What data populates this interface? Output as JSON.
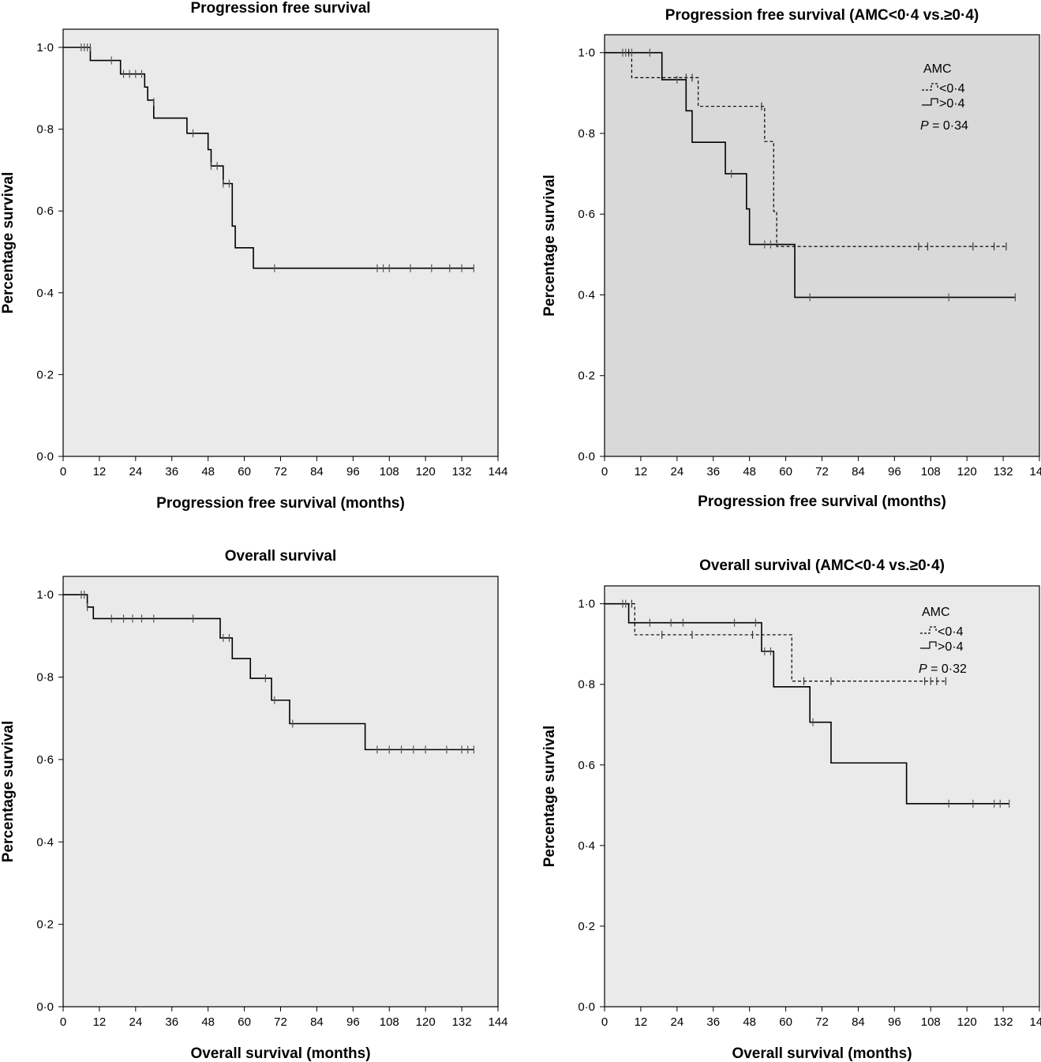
{
  "chart_data": [
    {
      "id": "pfs",
      "type": "line",
      "subtype": "kaplan-meier",
      "title": "Progression free survival",
      "xlabel": "Progression free survival (months)",
      "ylabel": "Percentage survival",
      "xlim": [
        0,
        144
      ],
      "ylim": [
        0,
        1.0
      ],
      "xticks": [
        "0",
        "12",
        "24",
        "36",
        "48",
        "60",
        "72",
        "84",
        "96",
        "108",
        "120",
        "132",
        "144"
      ],
      "yticks": [
        "0·0",
        "0·2",
        "0·4",
        "0·6",
        "0·8",
        "1·0"
      ],
      "background": "#eaeaea",
      "grid": false,
      "legend": null,
      "series": [
        {
          "style": "solid",
          "steps": [
            [
              0,
              1.0
            ],
            [
              9,
              0.968
            ],
            [
              19,
              0.935
            ],
            [
              27,
              0.903
            ],
            [
              28,
              0.871
            ],
            [
              30,
              0.827
            ],
            [
              41,
              0.79
            ],
            [
              48,
              0.75
            ],
            [
              49,
              0.71
            ],
            [
              53,
              0.667
            ],
            [
              56,
              0.563
            ],
            [
              57,
              0.51
            ],
            [
              63,
              0.46
            ],
            [
              136,
              0.46
            ]
          ],
          "censors": [
            [
              6,
              1.0
            ],
            [
              7,
              1.0
            ],
            [
              8,
              1.0
            ],
            [
              9,
              1.0
            ],
            [
              16,
              0.968
            ],
            [
              20,
              0.935
            ],
            [
              22,
              0.935
            ],
            [
              24,
              0.935
            ],
            [
              26,
              0.935
            ],
            [
              30,
              0.867
            ],
            [
              43,
              0.79
            ],
            [
              49,
              0.71
            ],
            [
              51,
              0.71
            ],
            [
              53,
              0.667
            ],
            [
              55,
              0.667
            ],
            [
              70,
              0.46
            ],
            [
              104,
              0.46
            ],
            [
              106,
              0.46
            ],
            [
              108,
              0.46
            ],
            [
              115,
              0.46
            ],
            [
              122,
              0.46
            ],
            [
              128,
              0.46
            ],
            [
              132,
              0.46
            ],
            [
              136,
              0.46
            ]
          ]
        }
      ]
    },
    {
      "id": "pfs-amc",
      "type": "line",
      "subtype": "kaplan-meier",
      "title": "Progression free survival (AMC<0·4 vs.≥0·4)",
      "xlabel": "Progression free survival (months)",
      "ylabel": "Percentage survival",
      "xlim": [
        0,
        144
      ],
      "ylim": [
        0,
        1.0
      ],
      "xticks": [
        "0",
        "12",
        "24",
        "36",
        "48",
        "60",
        "72",
        "84",
        "96",
        "108",
        "120",
        "132",
        "144"
      ],
      "yticks": [
        "0·0",
        "0·2",
        "0·4",
        "0·6",
        "0·8",
        "1·0"
      ],
      "background": "#d9d9d9",
      "grid": false,
      "legend": {
        "position": "top-right",
        "title": "AMC",
        "pvalue": "0·34",
        "pvalue_label": "P",
        "pvalue_eq": " = "
      },
      "series": [
        {
          "name": "<0·4",
          "style": "dashed",
          "steps": [
            [
              0,
              1.0
            ],
            [
              9,
              0.938
            ],
            [
              31,
              0.867
            ],
            [
              53,
              0.78
            ],
            [
              56,
              0.607
            ],
            [
              57,
              0.52
            ],
            [
              133,
              0.52
            ]
          ],
          "censors": [
            [
              8,
              1.0
            ],
            [
              27,
              0.938
            ],
            [
              29,
              0.938
            ],
            [
              52,
              0.867
            ],
            [
              104,
              0.52
            ],
            [
              107,
              0.52
            ],
            [
              122,
              0.52
            ],
            [
              129,
              0.52
            ],
            [
              133,
              0.52
            ]
          ]
        },
        {
          "name": ">0·4",
          "style": "solid",
          "steps": [
            [
              0,
              1.0
            ],
            [
              19,
              0.933
            ],
            [
              27,
              0.856
            ],
            [
              29,
              0.778
            ],
            [
              40,
              0.7
            ],
            [
              47,
              0.613
            ],
            [
              48,
              0.525
            ],
            [
              63,
              0.394
            ],
            [
              136,
              0.394
            ]
          ],
          "censors": [
            [
              6,
              1.0
            ],
            [
              7,
              1.0
            ],
            [
              9,
              1.0
            ],
            [
              15,
              1.0
            ],
            [
              24,
              0.933
            ],
            [
              42,
              0.7
            ],
            [
              53,
              0.525
            ],
            [
              55,
              0.525
            ],
            [
              68,
              0.394
            ],
            [
              114,
              0.394
            ],
            [
              136,
              0.394
            ]
          ]
        }
      ]
    },
    {
      "id": "os",
      "type": "line",
      "subtype": "kaplan-meier",
      "title": "Overall survival",
      "xlabel": "Overall survival (months)",
      "ylabel": "Percentage survival",
      "xlim": [
        0,
        144
      ],
      "ylim": [
        0,
        1.0
      ],
      "xticks": [
        "0",
        "12",
        "24",
        "36",
        "48",
        "60",
        "72",
        "84",
        "96",
        "108",
        "120",
        "132",
        "144"
      ],
      "yticks": [
        "0·0",
        "0·2",
        "0·4",
        "0·6",
        "0·8",
        "1·0"
      ],
      "background": "#eaeaea",
      "grid": false,
      "legend": null,
      "series": [
        {
          "style": "solid",
          "steps": [
            [
              0,
              1.0
            ],
            [
              8,
              0.97
            ],
            [
              10,
              0.942
            ],
            [
              52,
              0.895
            ],
            [
              56,
              0.845
            ],
            [
              62,
              0.797
            ],
            [
              69,
              0.744
            ],
            [
              75,
              0.687
            ],
            [
              100,
              0.624
            ],
            [
              136,
              0.624
            ]
          ],
          "censors": [
            [
              6,
              1.0
            ],
            [
              7,
              1.0
            ],
            [
              8,
              0.97
            ],
            [
              16,
              0.942
            ],
            [
              20,
              0.942
            ],
            [
              23,
              0.942
            ],
            [
              26,
              0.942
            ],
            [
              30,
              0.942
            ],
            [
              43,
              0.942
            ],
            [
              53,
              0.895
            ],
            [
              55,
              0.895
            ],
            [
              67,
              0.797
            ],
            [
              70,
              0.744
            ],
            [
              76,
              0.687
            ],
            [
              104,
              0.624
            ],
            [
              108,
              0.624
            ],
            [
              112,
              0.624
            ],
            [
              116,
              0.624
            ],
            [
              120,
              0.624
            ],
            [
              127,
              0.624
            ],
            [
              132,
              0.624
            ],
            [
              134,
              0.624
            ],
            [
              136,
              0.624
            ]
          ]
        }
      ]
    },
    {
      "id": "os-amc",
      "type": "line",
      "subtype": "kaplan-meier",
      "title": "Overall survival (AMC<0·4 vs.≥0·4)",
      "xlabel": "Overall survival (months)",
      "ylabel": "Percentage survival",
      "xlim": [
        0,
        144
      ],
      "ylim": [
        0,
        1.0
      ],
      "xticks": [
        "0",
        "12",
        "24",
        "36",
        "48",
        "60",
        "72",
        "84",
        "96",
        "108",
        "120",
        "132",
        "144"
      ],
      "yticks": [
        "0·0",
        "0·2",
        "0·4",
        "0·6",
        "0·8",
        "1·0"
      ],
      "background": "#eaeaea",
      "grid": false,
      "legend": {
        "position": "top-right",
        "title": "AMC",
        "pvalue": "0·32",
        "pvalue_label": "P",
        "pvalue_eq": " = "
      },
      "series": [
        {
          "name": "<0·4",
          "style": "dashed",
          "steps": [
            [
              0,
              1.0
            ],
            [
              10,
              0.923
            ],
            [
              62,
              0.808
            ],
            [
              113,
              0.808
            ]
          ],
          "censors": [
            [
              9,
              1.0
            ],
            [
              19,
              0.923
            ],
            [
              29,
              0.923
            ],
            [
              49,
              0.923
            ],
            [
              66,
              0.808
            ],
            [
              75,
              0.808
            ],
            [
              106,
              0.808
            ],
            [
              108,
              0.808
            ],
            [
              110,
              0.808
            ],
            [
              113,
              0.808
            ]
          ]
        },
        {
          "name": ">0·4",
          "style": "solid",
          "steps": [
            [
              0,
              1.0
            ],
            [
              8,
              0.953
            ],
            [
              52,
              0.882
            ],
            [
              56,
              0.794
            ],
            [
              68,
              0.706
            ],
            [
              75,
              0.605
            ],
            [
              100,
              0.504
            ],
            [
              134,
              0.504
            ]
          ],
          "censors": [
            [
              6,
              1.0
            ],
            [
              7,
              1.0
            ],
            [
              15,
              0.953
            ],
            [
              22,
              0.953
            ],
            [
              26,
              0.953
            ],
            [
              43,
              0.953
            ],
            [
              50,
              0.953
            ],
            [
              53,
              0.882
            ],
            [
              55,
              0.882
            ],
            [
              69,
              0.706
            ],
            [
              114,
              0.504
            ],
            [
              122,
              0.504
            ],
            [
              129,
              0.504
            ],
            [
              131,
              0.504
            ],
            [
              134,
              0.504
            ]
          ]
        }
      ]
    }
  ]
}
